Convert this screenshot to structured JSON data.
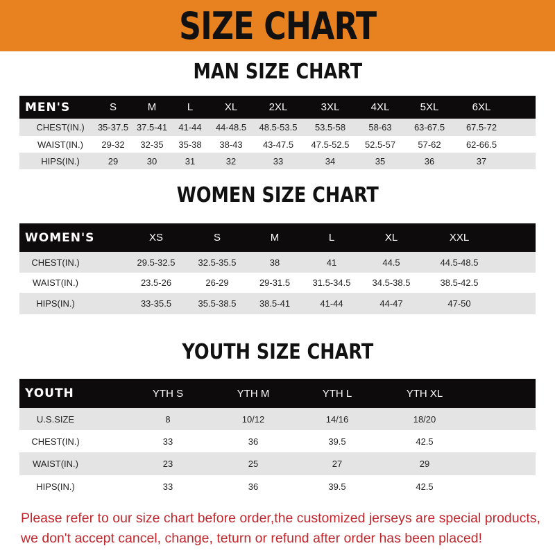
{
  "banner": {
    "title": "SIZE CHART",
    "color": "#e8811f"
  },
  "men": {
    "title": "MAN SIZE CHART",
    "header": [
      "MEN'S",
      "S",
      "M",
      "L",
      "XL",
      "2XL",
      "3XL",
      "4XL",
      "5XL",
      "6XL"
    ],
    "rows": [
      [
        "CHEST(IN.)",
        "35-37.5",
        "37.5-41",
        "41-44",
        "44-48.5",
        "48.5-53.5",
        "53.5-58",
        "58-63",
        "63-67.5",
        "67.5-72"
      ],
      [
        "WAIST(IN.)",
        "29-32",
        "32-35",
        "35-38",
        "38-43",
        "43-47.5",
        "47.5-52.5",
        "52.5-57",
        "57-62",
        "62-66.5"
      ],
      [
        "HIPS(IN.)",
        "29",
        "30",
        "31",
        "32",
        "33",
        "34",
        "35",
        "36",
        "37"
      ]
    ]
  },
  "women": {
    "title": "WOMEN SIZE CHART",
    "header": [
      "WOMEN'S",
      "XS",
      "S",
      "M",
      "L",
      "XL",
      "XXL"
    ],
    "rows": [
      [
        "CHEST(IN.)",
        "29.5-32.5",
        "32.5-35.5",
        "38",
        "41",
        "44.5",
        "44.5-48.5"
      ],
      [
        "WAIST(IN.)",
        "23.5-26",
        "26-29",
        "29-31.5",
        "31.5-34.5",
        "34.5-38.5",
        "38.5-42.5"
      ],
      [
        "HIPS(IN.)",
        "33-35.5",
        "35.5-38.5",
        "38.5-41",
        "41-44",
        "44-47",
        "47-50"
      ]
    ]
  },
  "youth": {
    "title": "YOUTH SIZE CHART",
    "header": [
      "YOUTH",
      "YTH S",
      "YTH M",
      "YTH L",
      "YTH XL"
    ],
    "rows": [
      [
        "U.S.SIZE",
        "8",
        "10/12",
        "14/16",
        "18/20"
      ],
      [
        "CHEST(IN.)",
        "33",
        "36",
        "39.5",
        "42.5"
      ],
      [
        "WAIST(IN.)",
        "23",
        "25",
        "27",
        "29"
      ],
      [
        "HIPS(IN.)",
        "33",
        "36",
        "39.5",
        "42.5"
      ]
    ]
  },
  "note": {
    "line1": "Please refer to our size chart before order,the customized jerseys are special products,",
    "line2": "we don't accept cancel, change, teturn or refund after order has been placed!",
    "color": "#c0272d"
  }
}
